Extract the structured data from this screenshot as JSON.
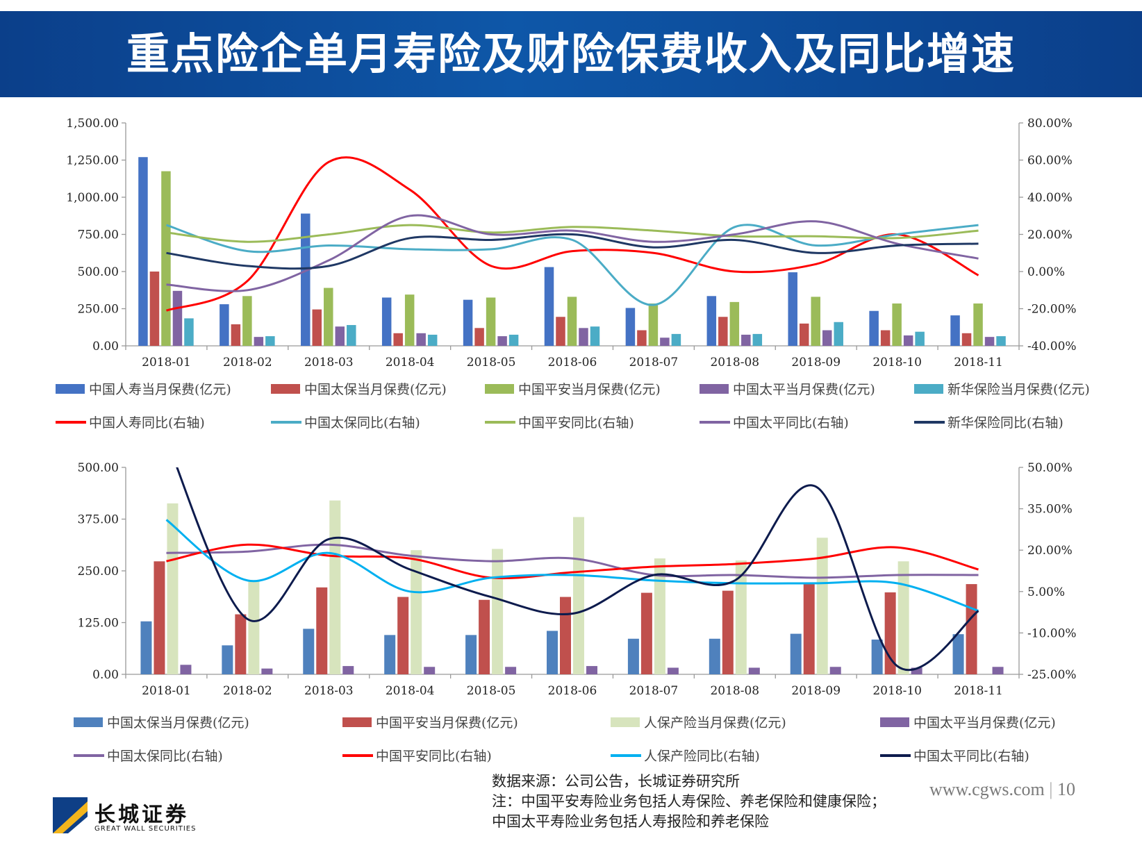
{
  "page": {
    "title": "重点险企单月寿险及财险保费收入及同比增速",
    "website": "www.cgws.com",
    "page_number": "10",
    "notes": [
      "数据来源：公司公告，长城证券研究所",
      "注：中国平安寿险业务包括人寿保险、养老保险和健康保险；",
      "中国太平寿险业务包括人寿报险和养老保险"
    ],
    "logo_cn": "长城证券",
    "logo_en": "GREAT WALL SECURITIES"
  },
  "chart_data": [
    {
      "type": "bar",
      "categories": [
        "2018-01",
        "2018-02",
        "2018-03",
        "2018-04",
        "2018-05",
        "2018-06",
        "2018-07",
        "2018-08",
        "2018-09",
        "2018-10",
        "2018-11"
      ],
      "y_left": {
        "min": 0,
        "max": 1500,
        "ticks": [
          0,
          250,
          500,
          750,
          1000,
          1250,
          1500
        ],
        "tick_labels": [
          "0.00",
          "250.00",
          "500.00",
          "750.00",
          "1,000.00",
          "1,250.00",
          "1,500.00"
        ]
      },
      "y_right": {
        "min": -40,
        "max": 80,
        "ticks": [
          -40,
          -20,
          0,
          20,
          40,
          60,
          80
        ],
        "tick_labels": [
          "-40.00%",
          "-20.00%",
          "0.00%",
          "20.00%",
          "40.00%",
          "60.00%",
          "80.00%"
        ]
      },
      "bar_series": [
        {
          "name": "中国人寿当月保费(亿元)",
          "color": "#4472c4",
          "values": [
            1270,
            280,
            890,
            325,
            310,
            530,
            255,
            335,
            495,
            235,
            205
          ]
        },
        {
          "name": "中国太保当月保费(亿元)",
          "color": "#c0504d",
          "values": [
            500,
            145,
            245,
            85,
            120,
            195,
            105,
            195,
            150,
            105,
            85
          ]
        },
        {
          "name": "中国平安当月保费(亿元)",
          "color": "#9bbb59",
          "values": [
            1175,
            335,
            390,
            345,
            325,
            330,
            285,
            295,
            330,
            285,
            285
          ]
        },
        {
          "name": "中国太平当月保费(亿元)",
          "color": "#8064a2",
          "values": [
            370,
            60,
            130,
            85,
            65,
            120,
            55,
            75,
            105,
            70,
            60
          ]
        },
        {
          "name": "新华保险当月保费(亿元)",
          "color": "#4bacc6",
          "values": [
            185,
            65,
            140,
            75,
            75,
            130,
            80,
            80,
            160,
            95,
            65
          ]
        }
      ],
      "line_series": [
        {
          "name": "中国人寿同比(右轴)",
          "color": "#ff0000",
          "values": [
            -21,
            -5,
            59,
            44,
            3,
            11,
            10,
            0,
            4,
            20,
            -2
          ]
        },
        {
          "name": "中国太保同比(右轴)",
          "color": "#4bacc6",
          "values": [
            25,
            11,
            14,
            12,
            12,
            17,
            -18,
            24,
            14,
            20,
            25
          ]
        },
        {
          "name": "中国平安同比(右轴)",
          "color": "#9bbb59",
          "values": [
            21,
            16,
            20,
            25,
            21,
            24,
            22,
            19,
            19,
            18,
            22
          ]
        },
        {
          "name": "中国太平同比(右轴)",
          "color": "#8064a2",
          "values": [
            -7,
            -10,
            6,
            30,
            20,
            22,
            16,
            20,
            27,
            15,
            7
          ]
        },
        {
          "name": "新华保险同比(右轴)",
          "color": "#1f3864",
          "values": [
            10,
            3,
            3,
            18,
            17,
            20,
            13,
            17,
            10,
            14,
            15
          ]
        }
      ]
    },
    {
      "type": "bar",
      "categories": [
        "2018-01",
        "2018-02",
        "2018-03",
        "2018-04",
        "2018-05",
        "2018-06",
        "2018-07",
        "2018-08",
        "2018-09",
        "2018-10",
        "2018-11"
      ],
      "y_left": {
        "min": 0,
        "max": 500,
        "ticks": [
          0,
          125,
          250,
          375,
          500
        ],
        "tick_labels": [
          "0.00",
          "125.00",
          "250.00",
          "375.00",
          "500.00"
        ]
      },
      "y_right": {
        "min": -25,
        "max": 50,
        "ticks": [
          -25,
          -10,
          5,
          20,
          35,
          50
        ],
        "tick_labels": [
          "-25.00%",
          "-10.00%",
          "5.00%",
          "20.00%",
          "35.00%",
          "50.00%"
        ]
      },
      "bar_series": [
        {
          "name": "中国太保当月保费(亿元)",
          "color": "#4f81bd",
          "values": [
            128,
            70,
            110,
            95,
            95,
            105,
            86,
            86,
            98,
            84,
            97
          ]
        },
        {
          "name": "中国平安当月保费(亿元)",
          "color": "#c0504d",
          "values": [
            273,
            145,
            210,
            187,
            180,
            187,
            197,
            202,
            218,
            198,
            218
          ]
        },
        {
          "name": "人保产险当月保费(亿元)",
          "color": "#d7e4bd",
          "values": [
            413,
            225,
            420,
            300,
            303,
            380,
            280,
            275,
            330,
            273,
            0
          ]
        },
        {
          "name": "中国太平当月保费(亿元)",
          "color": "#8064a2",
          "values": [
            23,
            14,
            20,
            18,
            18,
            20,
            16,
            16,
            18,
            16,
            18
          ]
        }
      ],
      "line_series": [
        {
          "name": "中国太保同比(右轴)",
          "color": "#8064a2",
          "values": [
            19,
            19.5,
            22,
            18,
            16,
            17,
            11,
            11,
            10,
            11,
            11
          ]
        },
        {
          "name": "中国平安同比(右轴)",
          "color": "#ff0000",
          "values": [
            16,
            22,
            18,
            17,
            10,
            12,
            14,
            15,
            17,
            21,
            13
          ]
        },
        {
          "name": "人保产险同比(右轴)",
          "color": "#00b0f0",
          "values": [
            31,
            9,
            19,
            5,
            10,
            11,
            9,
            8,
            8,
            8,
            -2
          ]
        },
        {
          "name": "中国太平同比(右轴)",
          "color": "#0d1b4d",
          "values": [
            60,
            -5,
            24,
            13,
            3,
            -3,
            11,
            9,
            43,
            -22,
            -2
          ]
        }
      ]
    }
  ]
}
